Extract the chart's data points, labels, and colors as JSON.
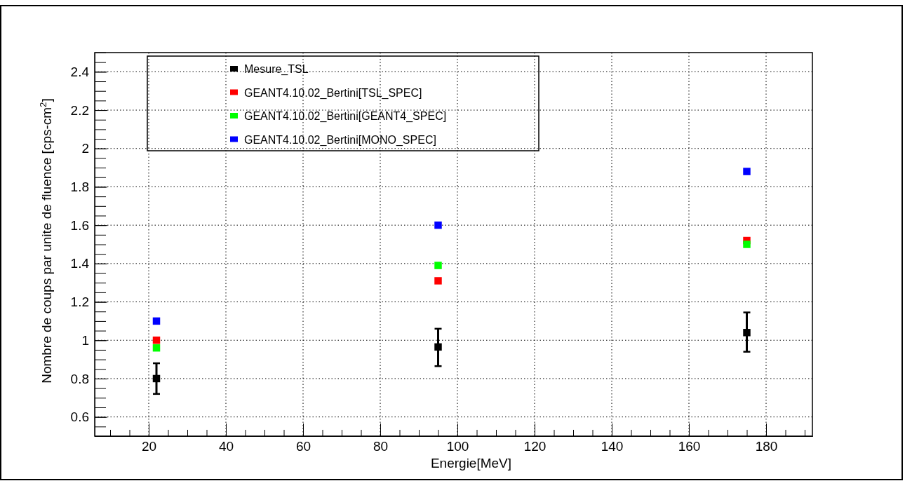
{
  "chart_data": {
    "type": "scatter",
    "xlabel": "Energie[MeV]",
    "ylabel": "Nombre de coups par unite de fluence [cps-cm$^{2}$]",
    "xlim": [
      6,
      192
    ],
    "xticks": [
      20,
      40,
      60,
      80,
      100,
      120,
      140,
      160,
      180
    ],
    "ylim": [
      0.5,
      2.5
    ],
    "yticks": [
      0.6,
      0.8,
      1,
      1.2,
      1.4,
      1.6,
      1.8,
      2,
      2.2,
      2.4
    ],
    "grid": true,
    "legend": "top left",
    "marker": "square",
    "series": [
      {
        "name": "Mesure_TSL",
        "color": "#000000",
        "x": [
          22,
          95,
          175
        ],
        "values": [
          0.8,
          0.965,
          1.04
        ],
        "errors": [
          [
            0.72,
            0.88
          ],
          [
            0.865,
            1.06
          ],
          [
            0.94,
            1.145
          ]
        ]
      },
      {
        "name": "GEANT4.10.02_Bertini[TSL_SPEC]",
        "color": "#ff0000",
        "x": [
          22,
          95,
          175
        ],
        "values": [
          1.0,
          1.31,
          1.52
        ]
      },
      {
        "name": "GEANT4.10.02_Bertini[GEANT4_SPEC]",
        "color": "#00ff00",
        "x": [
          22,
          95,
          175
        ],
        "values": [
          0.96,
          1.39,
          1.5
        ]
      },
      {
        "name": "GEANT4.10.02_Bertini[MONO_SPEC]",
        "color": "#0000ff",
        "x": [
          22,
          95,
          175
        ],
        "values": [
          1.1,
          1.6,
          1.88
        ]
      }
    ]
  }
}
